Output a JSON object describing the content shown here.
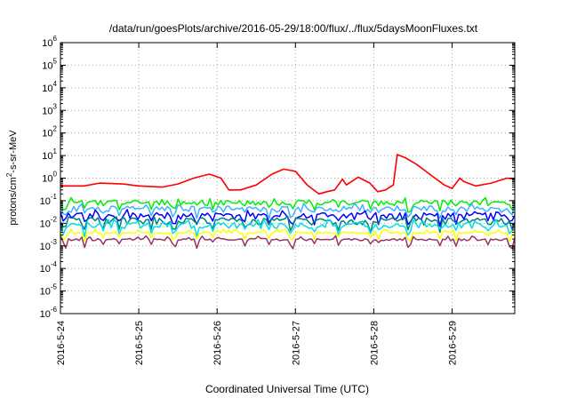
{
  "chart_data": {
    "type": "line",
    "title": "/data/run/goesPlots/archive/2016-05-29/18:00/flux/../flux/5daysMoonFluxes.txt",
    "xlabel": "Coordinated Universal Time (UTC)",
    "ylabel": {
      "pre": "protons/cm",
      "sup": "2",
      "post": "-s-sr-MeV"
    },
    "y_scale": "log",
    "ylim_exp": [
      -6,
      6
    ],
    "y_tick_exponents": [
      -6,
      -5,
      -4,
      -3,
      -2,
      -1,
      0,
      1,
      2,
      3,
      4,
      5,
      6
    ],
    "y_tick_base": "10",
    "x_ticks": [
      "2016-5-24",
      "2016-5-25",
      "2016-5-26",
      "2016-5-27",
      "2016-5-28",
      "2016-5-29"
    ],
    "x_range_days": [
      0,
      5.8
    ],
    "grid": true,
    "series": [
      {
        "color": "#ff0000",
        "points": [
          [
            0,
            0.45
          ],
          [
            0.3,
            0.45
          ],
          [
            0.5,
            0.6
          ],
          [
            0.8,
            0.55
          ],
          [
            1.0,
            0.45
          ],
          [
            1.3,
            0.4
          ],
          [
            1.5,
            0.55
          ],
          [
            1.7,
            1.0
          ],
          [
            1.9,
            1.5
          ],
          [
            2.05,
            1.0
          ],
          [
            2.15,
            0.3
          ],
          [
            2.3,
            0.3
          ],
          [
            2.5,
            0.5
          ],
          [
            2.7,
            1.5
          ],
          [
            2.85,
            2.5
          ],
          [
            3.0,
            2.0
          ],
          [
            3.15,
            0.5
          ],
          [
            3.3,
            0.2
          ],
          [
            3.4,
            0.25
          ],
          [
            3.5,
            0.3
          ],
          [
            3.6,
            0.9
          ],
          [
            3.65,
            0.5
          ],
          [
            3.8,
            1.1
          ],
          [
            3.95,
            0.6
          ],
          [
            4.05,
            0.25
          ],
          [
            4.15,
            0.3
          ],
          [
            4.25,
            0.5
          ],
          [
            4.3,
            11.0
          ],
          [
            4.4,
            8.0
          ],
          [
            4.55,
            4.0
          ],
          [
            4.75,
            1.2
          ],
          [
            4.9,
            0.5
          ],
          [
            5.0,
            0.35
          ],
          [
            5.1,
            1.0
          ],
          [
            5.15,
            0.7
          ],
          [
            5.3,
            0.45
          ],
          [
            5.5,
            0.6
          ],
          [
            5.7,
            1.0
          ],
          [
            5.8,
            0.9
          ]
        ]
      },
      {
        "color": "#00ee00",
        "base": 0.085,
        "amp": 0.35,
        "seed": 11
      },
      {
        "color": "#40b0ff",
        "base": 0.045,
        "amp": 0.4,
        "seed": 23
      },
      {
        "color": "#0000ff",
        "base": 0.022,
        "amp": 0.45,
        "seed": 37
      },
      {
        "color": "#008080",
        "base": 0.013,
        "amp": 0.45,
        "seed": 51
      },
      {
        "color": "#00e0e0",
        "base": 0.0085,
        "amp": 0.4,
        "seed": 67
      },
      {
        "color": "#ffff00",
        "base": 0.0038,
        "amp": 0.1,
        "seed": 79
      },
      {
        "color": "#993366",
        "base": 0.0019,
        "amp": 0.15,
        "seed": 91
      }
    ]
  }
}
